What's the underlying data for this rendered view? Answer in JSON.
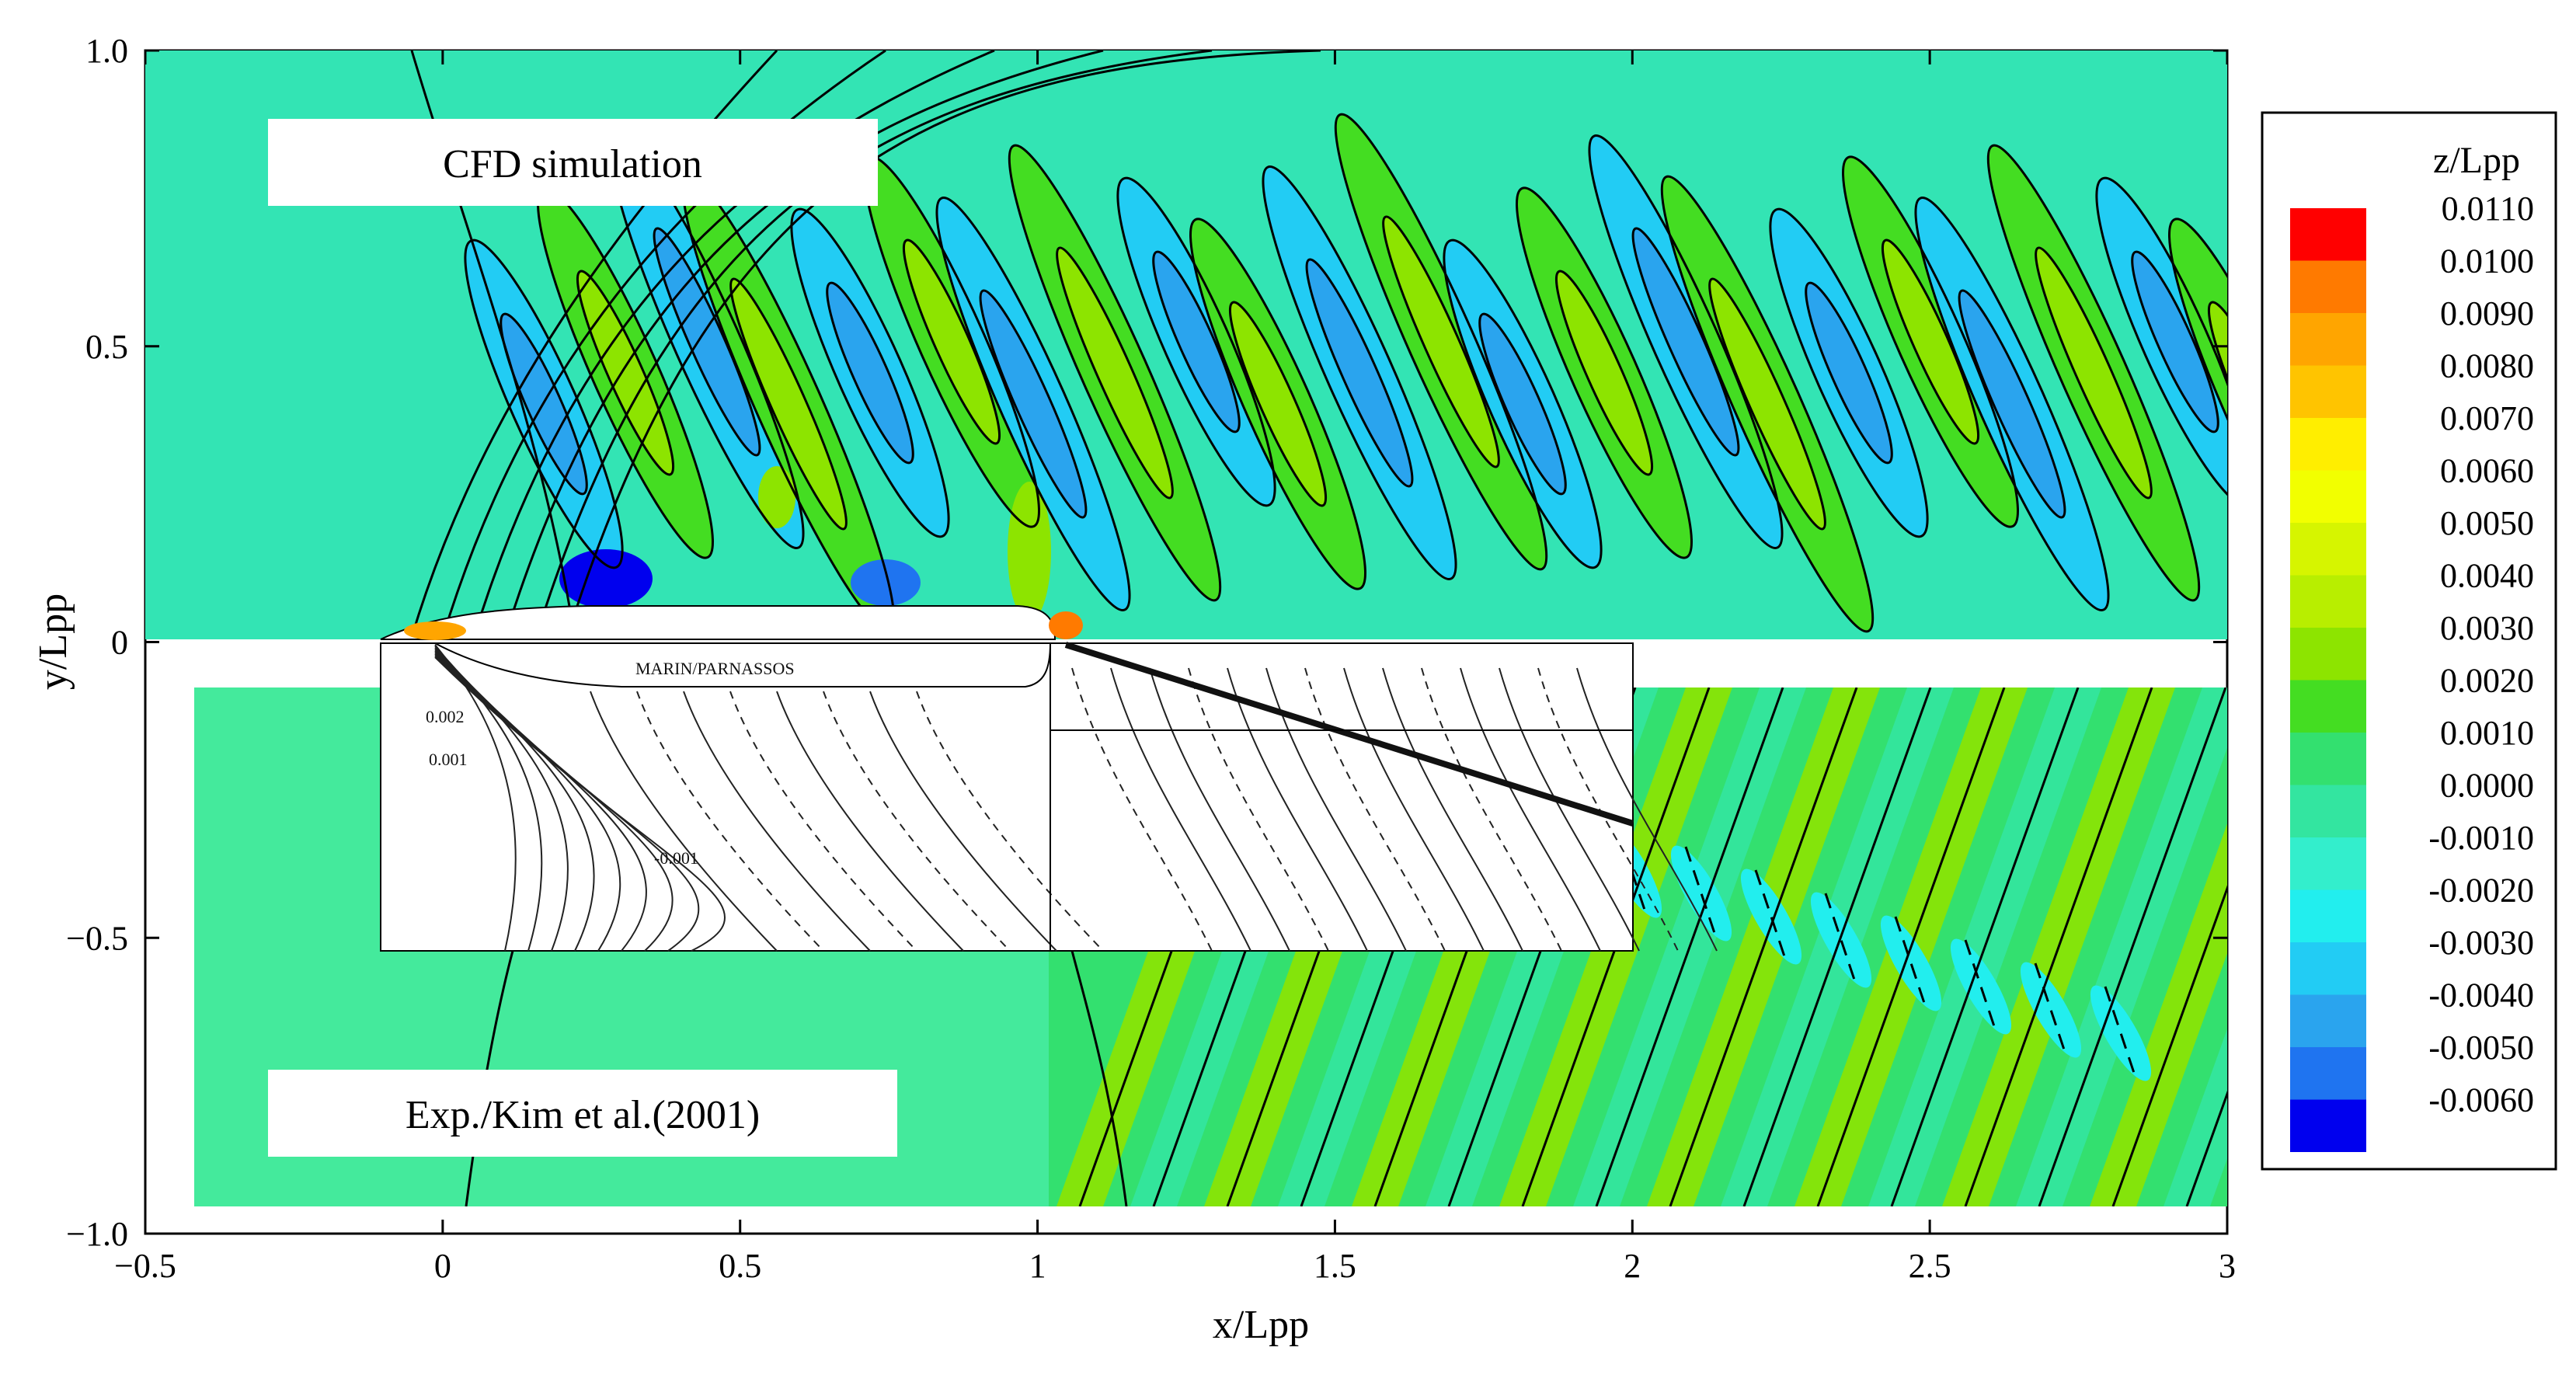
{
  "chart_data": {
    "type": "heatmap",
    "xlabel": "x/Lpp",
    "ylabel": "y/Lpp",
    "xlim": [
      -0.5,
      3
    ],
    "ylim": [
      -1.0,
      1.0
    ],
    "x_ticks": [
      {
        "value": -0.5,
        "label": "−0.5"
      },
      {
        "value": 0,
        "label": "0"
      },
      {
        "value": 0.5,
        "label": "0.5"
      },
      {
        "value": 1,
        "label": "1"
      },
      {
        "value": 1.5,
        "label": "1.5"
      },
      {
        "value": 2,
        "label": "2"
      },
      {
        "value": 2.5,
        "label": "2.5"
      },
      {
        "value": 3,
        "label": "3"
      }
    ],
    "y_ticks": [
      {
        "value": 1.0,
        "label": "1.0"
      },
      {
        "value": 0.5,
        "label": "0.5"
      },
      {
        "value": 0,
        "label": "0"
      },
      {
        "value": -0.5,
        "label": "−0.5"
      },
      {
        "value": -1.0,
        "label": "−1.0"
      }
    ],
    "panels": {
      "upper": "CFD simulation",
      "lower": "Exp./Kim et al.(2001)"
    },
    "inset": {
      "title": "MARIN/PARNASSOS",
      "contour_labels": [
        "0.002",
        "0.001",
        "-0.001"
      ]
    },
    "colorbar": {
      "title": "z/Lpp",
      "levels": [
        {
          "label": "0.0110",
          "color": "#ff0000"
        },
        {
          "label": "0.0100",
          "color": "#ff7a00"
        },
        {
          "label": "0.0090",
          "color": "#ffa500"
        },
        {
          "label": "0.0080",
          "color": "#ffc400"
        },
        {
          "label": "0.0070",
          "color": "#ffee00"
        },
        {
          "label": "0.0060",
          "color": "#f2ff00"
        },
        {
          "label": "0.0050",
          "color": "#d6f500"
        },
        {
          "label": "0.0040",
          "color": "#b8ee00"
        },
        {
          "label": "0.0030",
          "color": "#8de400"
        },
        {
          "label": "0.0020",
          "color": "#44dd22"
        },
        {
          "label": "0.0010",
          "color": "#33e06f"
        },
        {
          "label": "0.0000",
          "color": "#33e5a0"
        },
        {
          "label": "-0.0010",
          "color": "#33eecc"
        },
        {
          "label": "-0.0020",
          "color": "#22eeee"
        },
        {
          "label": "-0.0030",
          "color": "#22ccf4"
        },
        {
          "label": "-0.0040",
          "color": "#2aa4ee"
        },
        {
          "label": "-0.0050",
          "color": "#1f74f0"
        },
        {
          "label": "-0.0060",
          "color": "#0000ee"
        }
      ]
    },
    "colors": {
      "upper_background": "#33e4b4",
      "lower_background": "#44ea9c"
    }
  }
}
